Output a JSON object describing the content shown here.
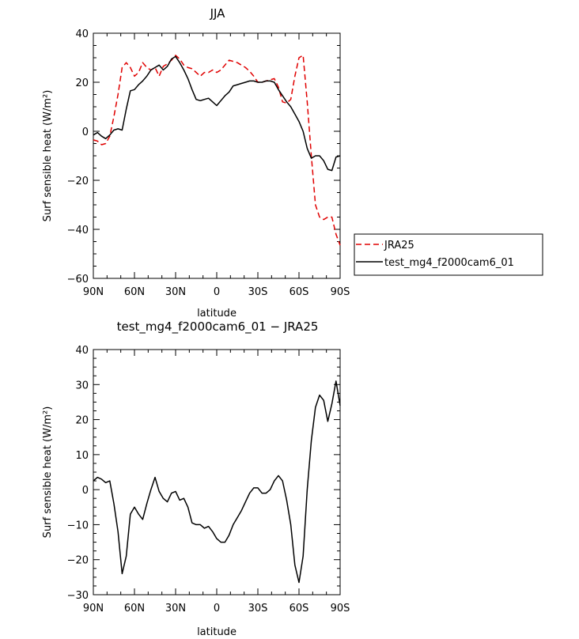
{
  "chart_data": [
    {
      "type": "line",
      "title": "JJA",
      "xlabel": "latitude",
      "ylabel": "Surf sensible heat (W/m²)",
      "ylim": [
        -60,
        40
      ],
      "yticks": [
        -60,
        -40,
        -20,
        0,
        20,
        40
      ],
      "xlim": [
        90,
        -90
      ],
      "xticks": [
        90,
        60,
        30,
        0,
        -30,
        -60,
        -90
      ],
      "xtick_labels": [
        "90N",
        "60N",
        "30N",
        "0",
        "30S",
        "60S",
        "90S"
      ],
      "grid": false,
      "legend": "right",
      "series": [
        {
          "name": "JRA25",
          "color": "#e00000",
          "dash": true,
          "x": [
            90,
            87,
            84,
            81,
            78,
            75,
            72,
            69,
            66,
            63,
            60,
            57,
            54,
            51,
            48,
            45,
            42,
            39,
            36,
            33,
            30,
            27,
            24,
            21,
            18,
            15,
            12,
            9,
            6,
            3,
            0,
            -3,
            -6,
            -9,
            -12,
            -15,
            -18,
            -21,
            -24,
            -27,
            -30,
            -33,
            -36,
            -39,
            -42,
            -45,
            -48,
            -51,
            -54,
            -57,
            -60,
            -63,
            -66,
            -69,
            -72,
            -75,
            -78,
            -81,
            -84,
            -87,
            -90
          ],
          "y": [
            -3.5,
            -4,
            -5.5,
            -5,
            -2,
            6,
            15,
            26,
            28,
            26,
            22.5,
            24,
            28,
            26,
            25,
            26,
            22.5,
            26.5,
            27.5,
            29,
            31,
            29.5,
            27,
            26,
            25.5,
            24,
            22.5,
            24,
            24,
            25,
            24,
            25,
            27,
            29,
            28.5,
            28,
            27,
            26,
            24.5,
            22.5,
            20,
            20,
            20.5,
            21,
            21.5,
            18,
            12,
            11.5,
            13,
            22.5,
            30,
            31,
            12,
            -10,
            -30,
            -35,
            -36,
            -35,
            -35,
            -42,
            -46.5
          ]
        },
        {
          "name": "test_mg4_f2000cam6_01",
          "color": "#000000",
          "dash": false,
          "x": [
            90,
            87,
            84,
            81,
            78,
            75,
            72,
            69,
            66,
            63,
            60,
            57,
            54,
            51,
            48,
            45,
            42,
            39,
            36,
            33,
            30,
            27,
            24,
            21,
            18,
            15,
            12,
            9,
            6,
            3,
            0,
            -3,
            -6,
            -9,
            -12,
            -15,
            -18,
            -21,
            -24,
            -27,
            -30,
            -33,
            -36,
            -39,
            -42,
            -45,
            -48,
            -51,
            -54,
            -57,
            -60,
            -63,
            -66,
            -69,
            -72,
            -75,
            -78,
            -81,
            -84,
            -87,
            -90
          ],
          "y": [
            -1.5,
            -0.5,
            -2,
            -3,
            -1.5,
            0.5,
            1,
            0.5,
            9,
            16.5,
            17,
            19,
            20.5,
            22.5,
            25,
            26,
            27,
            25,
            26.5,
            29.5,
            30.5,
            28,
            25,
            21.5,
            17,
            13,
            12.5,
            13,
            13.5,
            12,
            10.5,
            12.5,
            14.5,
            16,
            18.5,
            19,
            19.5,
            20,
            20.5,
            20.5,
            20,
            20,
            20.5,
            20.5,
            20,
            17,
            14.5,
            12,
            10,
            7,
            4,
            0,
            -7,
            -11,
            -10,
            -10,
            -12,
            -15.5,
            -16,
            -10.5,
            -10
          ]
        }
      ]
    },
    {
      "type": "line",
      "title": "test_mg4_f2000cam6_01 − JRA25",
      "xlabel": "latitude",
      "ylabel": "Surf sensible heat (W/m²)",
      "ylim": [
        -30,
        40
      ],
      "yticks": [
        -30,
        -20,
        -10,
        0,
        10,
        20,
        30,
        40
      ],
      "xlim": [
        90,
        -90
      ],
      "xticks": [
        90,
        60,
        30,
        0,
        -30,
        -60,
        -90
      ],
      "xtick_labels": [
        "90N",
        "60N",
        "30N",
        "0",
        "30S",
        "60S",
        "90S"
      ],
      "grid": false,
      "series": [
        {
          "color": "#000000",
          "dash": false,
          "x": [
            90,
            87,
            84,
            81,
            78,
            75,
            72,
            69,
            66,
            63,
            60,
            57,
            54,
            51,
            48,
            45,
            42,
            39,
            36,
            33,
            30,
            27,
            24,
            21,
            18,
            15,
            12,
            9,
            6,
            3,
            0,
            -3,
            -6,
            -9,
            -12,
            -15,
            -18,
            -21,
            -24,
            -27,
            -30,
            -33,
            -36,
            -39,
            -42,
            -45,
            -48,
            -51,
            -54,
            -57,
            -60,
            -63,
            -66,
            -69,
            -72,
            -75,
            -78,
            -81,
            -84,
            -87,
            -90
          ],
          "y": [
            2.5,
            3.5,
            3,
            2,
            2.5,
            -4,
            -12,
            -24,
            -19,
            -7,
            -5,
            -7,
            -8.5,
            -4,
            0,
            3.5,
            -0.5,
            -2.5,
            -3.5,
            -1,
            -0.5,
            -3,
            -2.5,
            -5,
            -9.5,
            -10,
            -10,
            -11,
            -10.5,
            -12,
            -14,
            -15,
            -15,
            -13,
            -10,
            -8,
            -6,
            -3.5,
            -1,
            0.5,
            0.5,
            -1,
            -1,
            0,
            2.5,
            4,
            2.5,
            -3,
            -10,
            -21.5,
            -26.5,
            -19,
            0,
            14,
            23.5,
            27,
            25.5,
            19.5,
            24.5,
            31,
            24
          ]
        }
      ]
    }
  ]
}
